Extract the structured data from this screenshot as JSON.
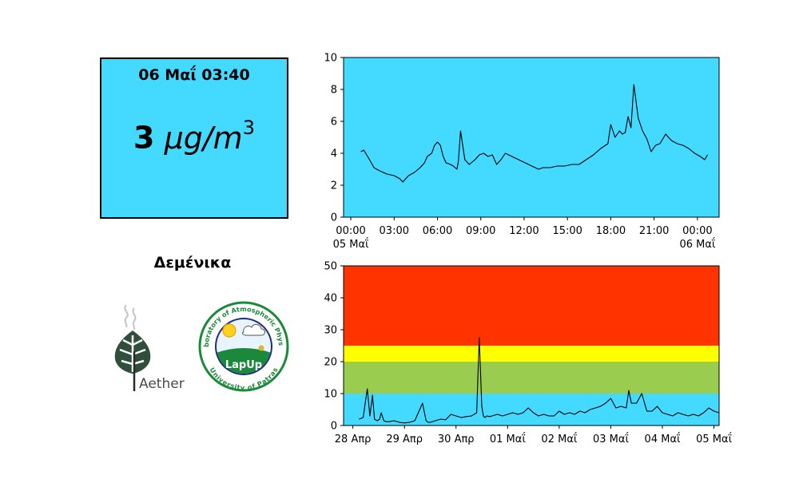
{
  "panel": {
    "timestamp": "06 Μαΐ 03:40",
    "value": "3",
    "unit_base": "μg/m",
    "unit_exp": "3",
    "station": "Δεμένικα",
    "box_color": "#44d9ff"
  },
  "logos": {
    "aether": {
      "text": "Aether"
    },
    "lapup": {
      "ring_text_top": "Laboratory of Atmospheric Physics",
      "ring_text_bottom": "University of Patras",
      "center_text": "LapUp"
    }
  },
  "chart_data": [
    {
      "type": "line",
      "background": "#44d9ff",
      "line_color": "#000000",
      "ylim": [
        0,
        10
      ],
      "yticks": [
        0,
        2,
        4,
        6,
        8,
        10
      ],
      "xlim": [
        -0.5,
        25.5
      ],
      "xticks": [
        {
          "x": 0,
          "label": "00:00",
          "sub": "05 Μαΐ"
        },
        {
          "x": 3,
          "label": "03:00",
          "sub": ""
        },
        {
          "x": 6,
          "label": "06:00",
          "sub": ""
        },
        {
          "x": 9,
          "label": "09:00",
          "sub": ""
        },
        {
          "x": 12,
          "label": "12:00",
          "sub": ""
        },
        {
          "x": 15,
          "label": "15:00",
          "sub": ""
        },
        {
          "x": 18,
          "label": "18:00",
          "sub": ""
        },
        {
          "x": 21,
          "label": "21:00",
          "sub": ""
        },
        {
          "x": 24,
          "label": "00:00",
          "sub": "06 Μαΐ"
        }
      ],
      "series": [
        {
          "x": [
            0.7,
            0.9,
            1.1,
            1.3,
            1.6,
            2.0,
            2.5,
            3.0,
            3.4,
            3.6,
            4.0,
            4.4,
            4.8,
            5.1,
            5.3,
            5.6,
            5.8,
            6.0,
            6.2,
            6.4,
            6.6,
            6.9,
            7.1,
            7.35,
            7.45,
            7.6,
            7.9,
            8.2,
            8.6,
            8.9,
            9.2,
            9.5,
            9.8,
            10.1,
            10.4,
            10.7,
            13.0,
            13.3,
            13.8,
            14.3,
            14.8,
            15.3,
            15.8,
            16.3,
            16.8,
            17.3,
            17.8,
            18.0,
            18.3,
            18.6,
            18.8,
            19.0,
            19.2,
            19.4,
            19.6,
            19.9,
            20.2,
            20.5,
            20.8,
            21.1,
            21.4,
            21.8,
            22.2,
            22.6,
            23.0,
            23.4,
            23.8,
            24.2,
            24.5,
            24.7
          ],
          "y": [
            4.1,
            4.2,
            3.9,
            3.6,
            3.1,
            2.9,
            2.7,
            2.6,
            2.4,
            2.2,
            2.6,
            2.8,
            3.1,
            3.4,
            3.8,
            4.0,
            4.5,
            4.7,
            4.5,
            3.8,
            3.4,
            3.3,
            3.2,
            3.0,
            3.5,
            5.4,
            3.6,
            3.3,
            3.6,
            3.9,
            4.0,
            3.8,
            3.9,
            3.3,
            3.6,
            4.0,
            3.0,
            3.1,
            3.1,
            3.2,
            3.2,
            3.3,
            3.3,
            3.6,
            3.9,
            4.3,
            4.6,
            5.8,
            5.0,
            5.4,
            5.2,
            5.3,
            6.3,
            5.6,
            8.3,
            6.2,
            5.4,
            4.9,
            4.1,
            4.5,
            4.6,
            5.2,
            4.8,
            4.6,
            4.5,
            4.3,
            4.0,
            3.8,
            3.6,
            3.9
          ]
        }
      ]
    },
    {
      "type": "line",
      "bands": [
        {
          "from": 0,
          "to": 10,
          "color": "#44d9ff"
        },
        {
          "from": 10,
          "to": 20,
          "color": "#99cc4f"
        },
        {
          "from": 20,
          "to": 25,
          "color": "#ffff00"
        },
        {
          "from": 25,
          "to": 50,
          "color": "#ff3300"
        }
      ],
      "line_color": "#000000",
      "ylim": [
        0,
        50
      ],
      "yticks": [
        0,
        10,
        20,
        30,
        40,
        50
      ],
      "xlim": [
        -0.18,
        7.1
      ],
      "xticks": [
        {
          "x": 0,
          "label": "28 Απρ"
        },
        {
          "x": 1,
          "label": "29 Απρ"
        },
        {
          "x": 2,
          "label": "30 Απρ"
        },
        {
          "x": 3,
          "label": "01 Μαΐ"
        },
        {
          "x": 4,
          "label": "02 Μαΐ"
        },
        {
          "x": 5,
          "label": "03 Μαΐ"
        },
        {
          "x": 6,
          "label": "04 Μαΐ"
        },
        {
          "x": 7,
          "label": "05 Μαΐ"
        }
      ],
      "series": [
        {
          "x": [
            0.12,
            0.2,
            0.28,
            0.33,
            0.38,
            0.42,
            0.47,
            0.52,
            0.55,
            0.6,
            0.65,
            0.7,
            0.8,
            0.9,
            1.0,
            1.1,
            1.2,
            1.35,
            1.42,
            1.46,
            1.5,
            1.6,
            1.7,
            1.8,
            1.9,
            2.0,
            2.1,
            2.2,
            2.3,
            2.4,
            2.45,
            2.5,
            2.53,
            2.56,
            2.6,
            2.65,
            2.7,
            2.8,
            2.9,
            3.0,
            3.1,
            3.2,
            3.3,
            3.4,
            3.5,
            3.6,
            3.7,
            3.8,
            3.9,
            4.0,
            4.1,
            4.2,
            4.3,
            4.4,
            4.5,
            4.6,
            4.7,
            4.8,
            4.9,
            5.0,
            5.1,
            5.2,
            5.3,
            5.35,
            5.4,
            5.5,
            5.6,
            5.7,
            5.8,
            5.9,
            6.0,
            6.1,
            6.2,
            6.3,
            6.4,
            6.5,
            6.6,
            6.7,
            6.8,
            6.9,
            7.0,
            7.1
          ],
          "y": [
            2.0,
            2.5,
            11.5,
            3.0,
            9.5,
            2.0,
            1.5,
            2.0,
            4.0,
            1.5,
            1.2,
            1.2,
            1.5,
            1.0,
            0.8,
            1.0,
            1.5,
            7.0,
            1.5,
            1.0,
            1.0,
            1.5,
            2.0,
            1.8,
            3.5,
            3.0,
            2.5,
            2.8,
            3.0,
            4.0,
            27.5,
            6.0,
            3.0,
            2.5,
            3.0,
            2.8,
            3.0,
            3.5,
            3.0,
            3.5,
            4.0,
            3.5,
            4.0,
            5.5,
            4.0,
            3.0,
            3.5,
            3.0,
            3.0,
            4.5,
            3.5,
            4.0,
            3.5,
            4.5,
            4.0,
            5.0,
            5.5,
            6.0,
            7.0,
            8.5,
            5.5,
            6.0,
            5.5,
            11.0,
            7.0,
            7.0,
            10.0,
            4.5,
            4.5,
            6.0,
            4.0,
            3.5,
            3.0,
            4.0,
            3.5,
            3.0,
            3.5,
            3.0,
            4.0,
            5.5,
            4.5,
            4.0
          ]
        }
      ]
    }
  ]
}
